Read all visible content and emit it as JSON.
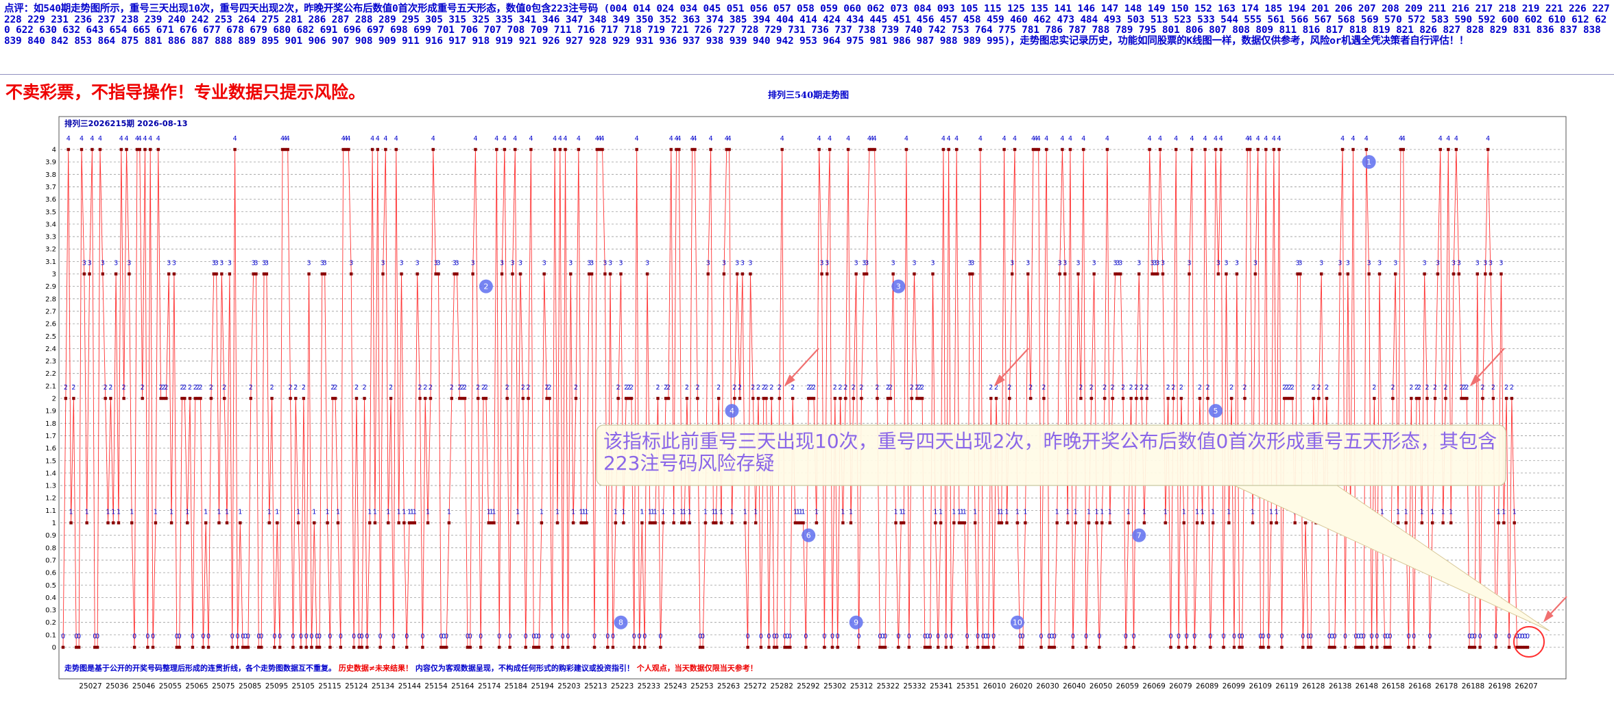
{
  "header": {
    "comment": "点评：如540期走势图所示，重号三天出现10次，重号四天出现2次，昨晚开奖公布后数值0首次形成重号五天形态，数值0包含223注号码 (004 014 024 034 045 051 056 057 058 059 060 062 073 084 093 105 115 125 135 141 146 147 148 149 150 152 163 174 185 194 201 206 207 208 209 211 216 217 218 219 221 226 227 228 229 231 236 237 238 239 240 242 253 264 275 281 286 287 288 289 295 305 315 325 335 341 346 347 348 349 350 352 363 374 385 394 404 414 424 434 445 451 456 457 458 459 460 462 473 484 493 503 513 523 533 544 555 561 566 567 568 569 570 572 583 590 592 600 602 610 612 620 622 630 632 643 654 665 671 676 677 678 679 680 682 691 696 697 698 699 701 706 707 708 709 711 716 717 718 719 721 726 727 728 729 731 736 737 738 739 740 742 753 764 775 781 786 787 788 789 795 801 806 807 808 809 811 816 817 818 819 821 826 827 828 829 831 836 837 838 839 840 842 853 864 875 881 886 887 888 889 895 901 906 907 908 909 911 916 917 918 919 921 926 927 928 929 931 936 937 938 939 940 942 953 964 975 981 986 987 988 989 995)，走势图忠实记录历史，功能如同股票的K线图一样，数据仅供参考，风险or机遇全凭决策者自行评估！！",
    "warning": "不卖彩票，不指导操作！专业数据只提示风险。",
    "page_title": "排列三540期走势图"
  },
  "chart_data": {
    "type": "line",
    "title": "排列三2026215期  2026-08-13",
    "ylim": [
      0,
      4
    ],
    "ytick_labels": [
      "0",
      "0.1",
      "0.2",
      "0.3",
      "0.4",
      "0.5",
      "0.6",
      "0.7",
      "0.8",
      "0.9",
      "1",
      "1.1",
      "1.2",
      "1.3",
      "1.4",
      "1.5",
      "1.6",
      "1.7",
      "1.8",
      "1.9",
      "2",
      "2.1",
      "2.2",
      "2.3",
      "2.4",
      "2.5",
      "2.6",
      "2.7",
      "2.8",
      "2.9",
      "3",
      "3.1",
      "3.2",
      "3.3",
      "3.4",
      "3.5",
      "3.6",
      "3.7",
      "3.8",
      "3.9",
      "4"
    ],
    "xtick_labels": [
      "25027",
      "25036",
      "25046",
      "25055",
      "25065",
      "25075",
      "25085",
      "25095",
      "25105",
      "25115",
      "25124",
      "25134",
      "25144",
      "25154",
      "25164",
      "25174",
      "25184",
      "25194",
      "25203",
      "25213",
      "25223",
      "25233",
      "25243",
      "25253",
      "25263",
      "25272",
      "25282",
      "25292",
      "25302",
      "25312",
      "25322",
      "25332",
      "25341",
      "25351",
      "26010",
      "26020",
      "26030",
      "26040",
      "26050",
      "26059",
      "26069",
      "26079",
      "26089",
      "26099",
      "26109",
      "26119",
      "26128",
      "26138",
      "26148",
      "26158",
      "26168",
      "26178",
      "26188",
      "26198",
      "26207"
    ],
    "n_points": 540,
    "values": [
      0,
      2,
      4,
      1,
      2,
      0,
      0,
      4,
      3,
      1,
      3,
      4,
      0,
      0,
      4,
      3,
      2,
      1,
      2,
      1,
      3,
      1,
      4,
      2,
      4,
      3,
      1,
      0,
      4,
      4,
      2,
      4,
      0,
      4,
      0,
      1,
      4,
      2,
      2,
      2,
      3,
      1,
      3,
      0,
      0,
      2,
      2,
      1,
      2,
      0,
      2,
      2,
      2,
      0,
      1,
      0,
      2,
      3,
      3,
      1,
      3,
      2,
      1,
      3,
      0,
      4,
      0,
      1,
      0,
      0,
      0,
      2,
      3,
      3,
      0,
      0,
      3,
      3,
      1,
      2,
      0,
      1,
      0,
      4,
      4,
      4,
      2,
      0,
      2,
      1,
      0,
      2,
      0,
      3,
      0,
      1,
      0,
      0,
      3,
      3,
      1,
      0,
      2,
      2,
      1,
      0,
      4,
      4,
      4,
      3,
      0,
      2,
      0,
      0,
      2,
      0,
      1,
      4,
      1,
      4,
      0,
      3,
      4,
      1,
      2,
      0,
      4,
      1,
      3,
      1,
      0,
      1,
      1,
      1,
      3,
      2,
      0,
      2,
      1,
      2,
      4,
      3,
      3,
      0,
      0,
      0,
      1,
      2,
      3,
      3,
      2,
      2,
      2,
      0,
      0,
      3,
      4,
      2,
      0,
      2,
      2,
      1,
      1,
      1,
      4,
      0,
      3,
      4,
      2,
      0,
      3,
      4,
      1,
      3,
      2,
      0,
      2,
      4,
      0,
      0,
      0,
      1,
      3,
      2,
      2,
      0,
      4,
      1,
      4,
      0,
      4,
      0,
      3,
      1,
      2,
      4,
      1,
      1,
      1,
      3,
      3,
      0,
      4,
      4,
      4,
      3,
      0,
      3,
      0,
      1,
      2,
      3,
      1,
      2,
      2,
      2,
      0,
      4,
      0,
      1,
      0,
      3,
      1,
      1,
      1,
      2,
      0,
      1,
      2,
      2,
      4,
      1,
      4,
      4,
      1,
      1,
      2,
      1,
      4,
      4,
      2,
      0,
      0,
      1,
      3,
      4,
      1,
      1,
      2,
      1,
      3,
      4,
      4,
      1,
      2,
      3,
      2,
      3,
      1,
      0,
      3,
      2,
      1,
      2,
      0,
      2,
      2,
      0,
      2,
      0,
      0,
      2,
      4,
      0,
      0,
      0,
      2,
      1,
      1,
      1,
      1,
      0,
      2,
      2,
      2,
      1,
      4,
      3,
      0,
      3,
      4,
      0,
      2,
      0,
      2,
      1,
      2,
      4,
      1,
      2,
      3,
      0,
      2,
      3,
      3,
      4,
      4,
      4,
      2,
      0,
      0,
      0,
      2,
      2,
      3,
      1,
      0,
      1,
      1,
      4,
      0,
      2,
      3,
      2,
      2,
      2,
      0,
      0,
      0,
      3,
      1,
      0,
      1,
      4,
      0,
      4,
      0,
      1,
      4,
      1,
      1,
      1,
      0,
      3,
      3,
      1,
      0,
      4,
      0,
      0,
      0,
      2,
      0,
      2,
      1,
      1,
      4,
      1,
      2,
      3,
      4,
      1,
      0,
      0,
      1,
      3,
      2,
      4,
      4,
      4,
      0,
      2,
      4,
      0,
      0,
      0,
      1,
      3,
      4,
      3,
      1,
      4,
      0,
      1,
      3,
      2,
      4,
      0,
      1,
      2,
      3,
      1,
      0,
      1,
      2,
      4,
      1,
      2,
      3,
      3,
      3,
      2,
      0,
      1,
      2,
      0,
      2,
      3,
      2,
      1,
      2,
      4,
      3,
      3,
      3,
      4,
      3,
      1,
      2,
      0,
      2,
      4,
      0,
      2,
      1,
      0,
      3,
      4,
      0,
      1,
      2,
      1,
      4,
      2,
      0,
      1,
      4,
      3,
      4,
      0,
      3,
      1,
      2,
      0,
      3,
      0,
      0,
      2,
      4,
      4,
      1,
      3,
      4,
      0,
      0,
      4,
      0,
      1,
      4,
      1,
      4,
      0,
      2,
      2,
      2,
      2,
      1,
      3,
      3,
      0,
      1,
      0,
      0,
      2,
      1,
      2,
      3,
      1,
      2,
      0,
      0,
      0,
      1,
      3,
      4,
      0,
      3,
      1,
      4,
      0,
      0,
      0,
      0,
      4,
      3,
      0,
      2,
      0,
      3,
      1,
      0,
      0,
      0,
      2,
      3,
      1,
      4,
      4,
      1,
      0,
      2,
      0,
      2,
      2,
      1,
      3,
      2,
      0,
      1,
      2,
      3,
      4,
      1,
      2,
      4,
      1,
      3,
      4,
      3,
      2,
      2,
      2,
      0,
      0,
      0,
      3,
      0,
      2,
      3,
      4,
      3,
      2,
      0,
      1,
      3,
      1,
      2,
      0,
      2,
      1,
      0,
      0,
      0,
      0,
      0
    ],
    "circle_markers": [
      {
        "label": "1",
        "x_index": 494,
        "y": 3.9
      },
      {
        "label": "2",
        "x_index": 160,
        "y": 2.9
      },
      {
        "label": "3",
        "x_index": 316,
        "y": 2.9
      },
      {
        "label": "4",
        "x_index": 253,
        "y": 1.9
      },
      {
        "label": "5",
        "x_index": 436,
        "y": 1.9
      },
      {
        "label": "6",
        "x_index": 282,
        "y": 0.9
      },
      {
        "label": "7",
        "x_index": 407,
        "y": 0.9
      },
      {
        "label": "8",
        "x_index": 211,
        "y": 0.2
      },
      {
        "label": "9",
        "x_index": 300,
        "y": 0.2
      },
      {
        "label": "10",
        "x_index": 361,
        "y": 0.2
      }
    ],
    "annotation": "该指标此前重号三天出现10次，重号四天出现2次，昨晚开奖公布后数值0首次形成重号五天形态，其包含223注号码风险存疑",
    "footer_blue": "走势图是基于公开的开奖号码整理后形成的连贯折线，各个走势图数据互不重复。",
    "footer_red1": "历史数据≠未来结果！",
    "footer_blue2": "内容仅为客观数据呈现，不构成任何形式的购彩建议或投资指引！",
    "footer_red2": "个人观点，当天数据仅限当天参考！",
    "colors": {
      "line": "#ff3030",
      "dot": "#880000",
      "label": "#0000cc",
      "circle": "#5e6ef0",
      "frame": "#555555",
      "grid": "#9a9a9a",
      "arrow": "#f07070"
    }
  }
}
